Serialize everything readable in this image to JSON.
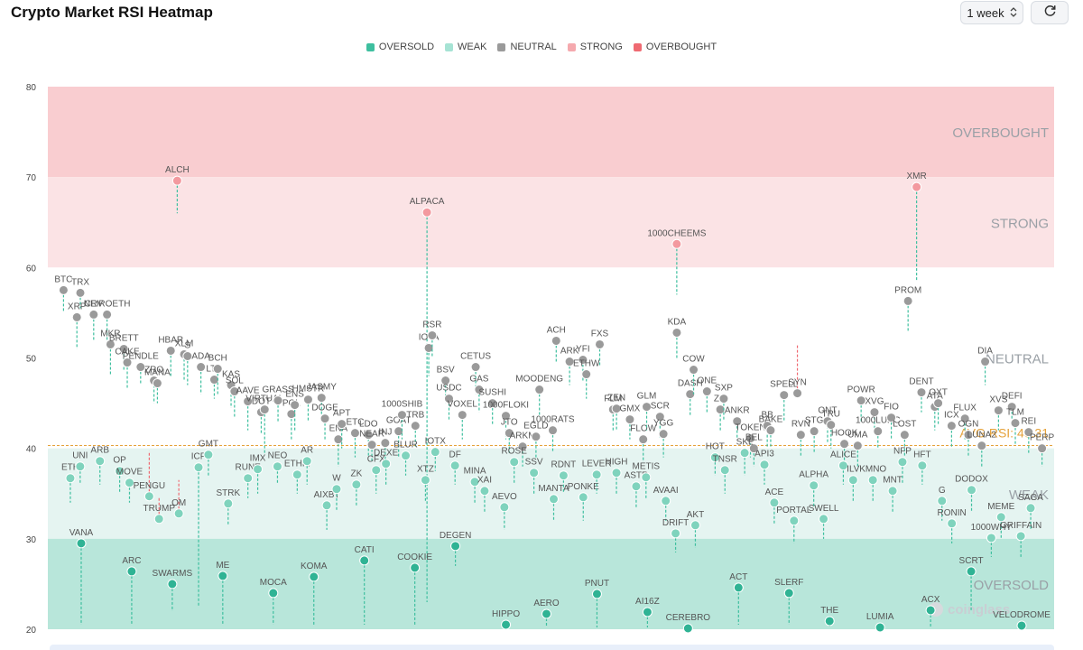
{
  "page": {
    "title": "Crypto Market RSI Heatmap"
  },
  "controls": {
    "period": "1 week"
  },
  "legend": [
    {
      "label": "OVERSOLD",
      "color": "#3ebf9f"
    },
    {
      "label": "WEAK",
      "color": "#a6e3d4"
    },
    {
      "label": "NEUTRAL",
      "color": "#9a9a9a"
    },
    {
      "label": "STRONG",
      "color": "#f5a9ae"
    },
    {
      "label": "OVERBOUGHT",
      "color": "#ef6a72"
    }
  ],
  "chart_data": {
    "type": "scatter",
    "title": "",
    "xlabel": "",
    "ylabel": "",
    "ylim": [
      20,
      80
    ],
    "yticks": [
      20,
      30,
      40,
      50,
      60,
      70,
      80
    ],
    "grid": false,
    "legend_position": "top-center",
    "zones": [
      {
        "label": "OVERBOUGHT",
        "from": 70,
        "to": 80,
        "color": "#f9cdd0"
      },
      {
        "label": "STRONG",
        "from": 60,
        "to": 70,
        "color": "#fbe3e5"
      },
      {
        "label": "NEUTRAL",
        "from": 40,
        "to": 60,
        "color": "#ffffff"
      },
      {
        "label": "WEAK",
        "from": 30,
        "to": 40,
        "color": "#e5f4f1"
      },
      {
        "label": "OVERSOLD",
        "from": 20,
        "to": 30,
        "color": "#b8e6da"
      }
    ],
    "average": {
      "label": "AVG RSI: 40.31",
      "value": 40.31
    },
    "watermark": "coinglass",
    "points": [
      {
        "label": "ALCH",
        "rsi": 69.6,
        "prev": 66.0
      },
      {
        "label": "ALPACA",
        "rsi": 66.1,
        "prev": 23.0
      },
      {
        "label": "1000CHEEMS",
        "rsi": 62.6,
        "prev": 57.0
      },
      {
        "label": "XMR",
        "rsi": 68.9,
        "prev": 58.5
      },
      {
        "label": "BTC",
        "rsi": 57.5,
        "prev": 55.0
      },
      {
        "label": "XRP",
        "rsi": 54.5,
        "prev": 51.0
      },
      {
        "label": "TRX",
        "rsi": 57.2,
        "prev": 55.5
      },
      {
        "label": "CRV",
        "rsi": 54.8,
        "prev": 52.0
      },
      {
        "label": "NEIROETH",
        "rsi": 54.8,
        "prev": 51.5
      },
      {
        "label": "MKR",
        "rsi": 51.5,
        "prev": 48.0
      },
      {
        "label": "BRETT",
        "rsi": 51.0,
        "prev": 48.5
      },
      {
        "label": "CAKE",
        "rsi": 49.5,
        "prev": 46.5
      },
      {
        "label": "PENDLE",
        "rsi": 49.0,
        "prev": 47.0
      },
      {
        "label": "ZRO",
        "rsi": 47.5,
        "prev": 45.0
      },
      {
        "label": "MANA",
        "rsi": 47.2,
        "prev": 45.0
      },
      {
        "label": "HBAR",
        "rsi": 50.8,
        "prev": 48.0
      },
      {
        "label": "XLM",
        "rsi": 50.4,
        "prev": 47.5
      },
      {
        "label": "S",
        "rsi": 50.2,
        "prev": 47.0
      },
      {
        "label": "ADA",
        "rsi": 49.0,
        "prev": 46.0
      },
      {
        "label": "LTC",
        "rsi": 47.6,
        "prev": 45.5
      },
      {
        "label": "BCH",
        "rsi": 48.8,
        "prev": 46.0
      },
      {
        "label": "KAS",
        "rsi": 47.0,
        "prev": 44.5
      },
      {
        "label": "SOL",
        "rsi": 46.3,
        "prev": 43.5
      },
      {
        "label": "AAVE",
        "rsi": 45.2,
        "prev": 42.0
      },
      {
        "label": "DOT",
        "rsi": 44.0,
        "prev": 41.5
      },
      {
        "label": "VIRTUAL",
        "rsi": 44.3,
        "prev": 39.5
      },
      {
        "label": "GRASS",
        "rsi": 45.3,
        "prev": 43.0
      },
      {
        "label": "POL",
        "rsi": 43.8,
        "prev": 41.0
      },
      {
        "label": "ENS",
        "rsi": 44.8,
        "prev": 42.0
      },
      {
        "label": "HMSTR",
        "rsi": 45.4,
        "prev": 43.0
      },
      {
        "label": "JASMY",
        "rsi": 45.6,
        "prev": 43.5
      },
      {
        "label": "DOGE",
        "rsi": 43.3,
        "prev": 41.0
      },
      {
        "label": "ENA",
        "rsi": 41.0,
        "prev": 38.0
      },
      {
        "label": "APT",
        "rsi": 42.7,
        "prev": 40.0
      },
      {
        "label": "ETC",
        "rsi": 41.7,
        "prev": 39.0
      },
      {
        "label": "LDO",
        "rsi": 41.5,
        "prev": 39.0
      },
      {
        "label": "NEAR",
        "rsi": 40.4,
        "prev": 38.5
      },
      {
        "label": "INJ",
        "rsi": 40.6,
        "prev": 38.0
      },
      {
        "label": "GOAT",
        "rsi": 41.9,
        "prev": 39.0
      },
      {
        "label": "1000SHIB",
        "rsi": 43.7,
        "prev": 41.0
      },
      {
        "label": "TRB",
        "rsi": 42.5,
        "prev": 40.0
      },
      {
        "label": "IOTA",
        "rsi": 51.1,
        "prev": 48.0
      },
      {
        "label": "RSR",
        "rsi": 52.5,
        "prev": 50.0
      },
      {
        "label": "BSV",
        "rsi": 47.5,
        "prev": 45.0
      },
      {
        "label": "USDC",
        "rsi": 45.5,
        "prev": 43.0
      },
      {
        "label": "VOXEL",
        "rsi": 43.7,
        "prev": 41.0
      },
      {
        "label": "CETUS",
        "rsi": 49.0,
        "prev": 46.0
      },
      {
        "label": "GAS",
        "rsi": 46.5,
        "prev": 44.0
      },
      {
        "label": "SUSHI",
        "rsi": 45.0,
        "prev": 42.5
      },
      {
        "label": "1000FLOKI",
        "rsi": 43.6,
        "prev": 41.0
      },
      {
        "label": "JTO",
        "rsi": 41.7,
        "prev": 39.5
      },
      {
        "label": "ARKM",
        "rsi": 40.2,
        "prev": 38.0
      },
      {
        "label": "EGLD",
        "rsi": 41.3,
        "prev": 39.0
      },
      {
        "label": "MOODENG",
        "rsi": 46.5,
        "prev": 43.5
      },
      {
        "label": "1000RATS",
        "rsi": 42.0,
        "prev": 39.5
      },
      {
        "label": "ACH",
        "rsi": 51.9,
        "prev": 49.5
      },
      {
        "label": "ARK",
        "rsi": 49.6,
        "prev": 47.0
      },
      {
        "label": "YFI",
        "rsi": 49.8,
        "prev": 47.5
      },
      {
        "label": "ETHW",
        "rsi": 48.2,
        "prev": 45.5
      },
      {
        "label": "FXS",
        "rsi": 51.5,
        "prev": 49.0
      },
      {
        "label": "FLM",
        "rsi": 44.3,
        "prev": 42.0
      },
      {
        "label": "ZEN",
        "rsi": 44.4,
        "prev": 42.0
      },
      {
        "label": "GMX",
        "rsi": 43.2,
        "prev": 41.0
      },
      {
        "label": "FLOW",
        "rsi": 41.0,
        "prev": 38.5
      },
      {
        "label": "GLM",
        "rsi": 44.6,
        "prev": 42.0
      },
      {
        "label": "SCR",
        "rsi": 43.5,
        "prev": 41.0
      },
      {
        "label": "YGG",
        "rsi": 41.6,
        "prev": 39.0
      },
      {
        "label": "KDA",
        "rsi": 52.8,
        "prev": 50.0
      },
      {
        "label": "DASH",
        "rsi": 46.0,
        "prev": 43.5
      },
      {
        "label": "COW",
        "rsi": 48.7,
        "prev": 46.0
      },
      {
        "label": "ONE",
        "rsi": 46.3,
        "prev": 44.0
      },
      {
        "label": "ZIL",
        "rsi": 44.3,
        "prev": 42.0
      },
      {
        "label": "SXP",
        "rsi": 45.5,
        "prev": 43.0
      },
      {
        "label": "ANKR",
        "rsi": 43.0,
        "prev": 41.0
      },
      {
        "label": "TOKEN",
        "rsi": 41.1,
        "prev": 39.0
      },
      {
        "label": "BEL",
        "rsi": 40.0,
        "prev": 38.0
      },
      {
        "label": "BB",
        "rsi": 42.5,
        "prev": 40.0
      },
      {
        "label": "BAKE",
        "rsi": 42.0,
        "prev": 40.0
      },
      {
        "label": "SPELL",
        "rsi": 45.9,
        "prev": 43.0
      },
      {
        "label": "SYN",
        "rsi": 46.1,
        "prev": 51.4
      },
      {
        "label": "RVN",
        "rsi": 41.5,
        "prev": 39.0
      },
      {
        "label": "STG",
        "rsi": 41.9,
        "prev": 39.5
      },
      {
        "label": "ONT",
        "rsi": 43.0,
        "prev": 40.5
      },
      {
        "label": "TRU",
        "rsi": 42.6,
        "prev": 40.0
      },
      {
        "label": "HOOK",
        "rsi": 40.5,
        "prev": 38.0
      },
      {
        "label": "UMA",
        "rsi": 40.3,
        "prev": 38.0
      },
      {
        "label": "POWR",
        "rsi": 45.3,
        "prev": 43.0
      },
      {
        "label": "XVG",
        "rsi": 44.0,
        "prev": 41.5
      },
      {
        "label": "1000LUNC",
        "rsi": 41.9,
        "prev": 40.0
      },
      {
        "label": "FIO",
        "rsi": 43.4,
        "prev": 41.0
      },
      {
        "label": "LOST",
        "rsi": 41.5,
        "prev": 39.0
      },
      {
        "label": "PROM",
        "rsi": 56.3,
        "prev": 53.0
      },
      {
        "label": "DENT",
        "rsi": 46.2,
        "prev": 44.0
      },
      {
        "label": "ATA",
        "rsi": 44.6,
        "prev": 42.0
      },
      {
        "label": "OXT",
        "rsi": 45.0,
        "prev": 42.5
      },
      {
        "label": "ICX",
        "rsi": 42.5,
        "prev": 40.0
      },
      {
        "label": "FLUX",
        "rsi": 43.3,
        "prev": 41.0
      },
      {
        "label": "OGN",
        "rsi": 41.5,
        "prev": 39.0
      },
      {
        "label": "LUNA2",
        "rsi": 40.3,
        "prev": 38.0
      },
      {
        "label": "DIA",
        "rsi": 49.6,
        "prev": 47.0
      },
      {
        "label": "XVS",
        "rsi": 44.2,
        "prev": 42.0
      },
      {
        "label": "DEFI",
        "rsi": 44.6,
        "prev": 42.5
      },
      {
        "label": "TLM",
        "rsi": 42.8,
        "prev": 40.5
      },
      {
        "label": "REI",
        "rsi": 41.8,
        "prev": 39.5
      },
      {
        "label": "ETH",
        "rsi": 36.7,
        "prev": 34.0
      },
      {
        "label": "UNI",
        "rsi": 38.0,
        "prev": 36.0
      },
      {
        "label": "ARB",
        "rsi": 38.6,
        "prev": 36.0
      },
      {
        "label": "OP",
        "rsi": 37.5,
        "prev": 35.0
      },
      {
        "label": "MOVE",
        "rsi": 36.2,
        "prev": 34.0
      },
      {
        "label": "PENGU",
        "rsi": 34.7,
        "prev": 39.7
      },
      {
        "label": "TRUMP",
        "rsi": 32.2,
        "prev": 34.5
      },
      {
        "label": "OM",
        "rsi": 32.8,
        "prev": 36.5
      },
      {
        "label": "ICP",
        "rsi": 37.9,
        "prev": 22.5
      },
      {
        "label": "GMT",
        "rsi": 39.3,
        "prev": 37.0
      },
      {
        "label": "STRK",
        "rsi": 33.9,
        "prev": 31.5
      },
      {
        "label": "RUNE",
        "rsi": 36.7,
        "prev": 34.5
      },
      {
        "label": "IMX",
        "rsi": 37.7,
        "prev": 35.0
      },
      {
        "label": "NEO",
        "rsi": 38.0,
        "prev": 36.0
      },
      {
        "label": "ETHFI",
        "rsi": 37.1,
        "prev": 35.0
      },
      {
        "label": "AR",
        "rsi": 38.6,
        "prev": 36.0
      },
      {
        "label": "AIXBT",
        "rsi": 33.7,
        "prev": 31.0
      },
      {
        "label": "W",
        "rsi": 35.5,
        "prev": 33.0
      },
      {
        "label": "ZK",
        "rsi": 36.0,
        "prev": 33.5
      },
      {
        "label": "CFX",
        "rsi": 37.6,
        "prev": 35.0
      },
      {
        "label": "DEXE",
        "rsi": 38.3,
        "prev": 36.0
      },
      {
        "label": "BLUR",
        "rsi": 39.2,
        "prev": 37.0
      },
      {
        "label": "XTZ",
        "rsi": 36.5,
        "prev": 34.0
      },
      {
        "label": "IOTX",
        "rsi": 39.6,
        "prev": 37.5
      },
      {
        "label": "DF",
        "rsi": 38.1,
        "prev": 36.0
      },
      {
        "label": "MINA",
        "rsi": 36.3,
        "prev": 34.0
      },
      {
        "label": "XAI",
        "rsi": 35.3,
        "prev": 33.0
      },
      {
        "label": "AEVO",
        "rsi": 33.5,
        "prev": 31.0
      },
      {
        "label": "ROSE",
        "rsi": 38.5,
        "prev": 36.0
      },
      {
        "label": "SSV",
        "rsi": 37.3,
        "prev": 35.0
      },
      {
        "label": "MANTA",
        "rsi": 34.4,
        "prev": 32.0
      },
      {
        "label": "RDNT",
        "rsi": 37.0,
        "prev": 35.0
      },
      {
        "label": "PONKE",
        "rsi": 34.6,
        "prev": 32.0
      },
      {
        "label": "PERP",
        "rsi": 40.0,
        "prev": 38.0
      },
      {
        "label": "LEVER",
        "rsi": 37.1,
        "prev": 35.0
      },
      {
        "label": "HIGH",
        "rsi": 37.3,
        "prev": 35.0
      },
      {
        "label": "ASTR",
        "rsi": 35.8,
        "prev": 33.5
      },
      {
        "label": "METIS",
        "rsi": 36.8,
        "prev": 34.5
      },
      {
        "label": "AVAAI",
        "rsi": 34.2,
        "prev": 32.0
      },
      {
        "label": "DRIFT",
        "rsi": 30.6,
        "prev": 28.5
      },
      {
        "label": "AKT",
        "rsi": 31.5,
        "prev": 29.0
      },
      {
        "label": "HOT",
        "rsi": 39.0,
        "prev": 37.0
      },
      {
        "label": "TNSR",
        "rsi": 37.6,
        "prev": 35.0
      },
      {
        "label": "SKL",
        "rsi": 39.5,
        "prev": 37.0
      },
      {
        "label": "API3",
        "rsi": 38.2,
        "prev": 36.0
      },
      {
        "label": "ACE",
        "rsi": 34.0,
        "prev": 31.5
      },
      {
        "label": "PORTAL",
        "rsi": 32.0,
        "prev": 29.5
      },
      {
        "label": "ALPHA",
        "rsi": 35.9,
        "prev": 33.5
      },
      {
        "label": "SWELL",
        "rsi": 32.2,
        "prev": 30.0
      },
      {
        "label": "ALICE",
        "rsi": 38.1,
        "prev": 36.0
      },
      {
        "label": "ILV",
        "rsi": 36.5,
        "prev": 34.0
      },
      {
        "label": "KMNO",
        "rsi": 36.5,
        "prev": 34.0
      },
      {
        "label": "MNT",
        "rsi": 35.3,
        "prev": 33.0
      },
      {
        "label": "NFP",
        "rsi": 38.5,
        "prev": 36.0
      },
      {
        "label": "HFT",
        "rsi": 38.1,
        "prev": 36.0
      },
      {
        "label": "G",
        "rsi": 34.2,
        "prev": 32.0
      },
      {
        "label": "RONIN",
        "rsi": 31.7,
        "prev": 29.5
      },
      {
        "label": "DODOX",
        "rsi": 35.4,
        "prev": 33.0
      },
      {
        "label": "1000WHY",
        "rsi": 30.1,
        "prev": 28.0
      },
      {
        "label": "MEME",
        "rsi": 32.4,
        "prev": 30.0
      },
      {
        "label": "GRIFFAIN",
        "rsi": 30.3,
        "prev": 28.0
      },
      {
        "label": "SAGA",
        "rsi": 33.4,
        "prev": 31.0
      },
      {
        "label": "VANA",
        "rsi": 29.5,
        "prev": 20.5
      },
      {
        "label": "ARC",
        "rsi": 26.4,
        "prev": 20.5
      },
      {
        "label": "SWARMS",
        "rsi": 25.0,
        "prev": 22.0
      },
      {
        "label": "ME",
        "rsi": 25.9,
        "prev": 20.5
      },
      {
        "label": "MOCA",
        "rsi": 24.0,
        "prev": 20.5
      },
      {
        "label": "KOMA",
        "rsi": 25.8,
        "prev": 20.5
      },
      {
        "label": "CATI",
        "rsi": 27.6,
        "prev": 20.5
      },
      {
        "label": "COOKIE",
        "rsi": 26.8,
        "prev": 20.5
      },
      {
        "label": "DEGEN",
        "rsi": 29.2,
        "prev": 27.0
      },
      {
        "label": "HIPPO",
        "rsi": 20.5,
        "prev": 20.2
      },
      {
        "label": "AERO",
        "rsi": 21.7,
        "prev": 20.2
      },
      {
        "label": "PNUT",
        "rsi": 23.9,
        "prev": 20.2
      },
      {
        "label": "AI16Z",
        "rsi": 21.9,
        "prev": 20.2
      },
      {
        "label": "CEREBRO",
        "rsi": 20.1,
        "prev": 20.0
      },
      {
        "label": "ACT",
        "rsi": 24.6,
        "prev": 20.5
      },
      {
        "label": "SLERF",
        "rsi": 24.0,
        "prev": 20.5
      },
      {
        "label": "THE",
        "rsi": 20.9,
        "prev": 20.3
      },
      {
        "label": "LUMIA",
        "rsi": 20.2,
        "prev": 20.0
      },
      {
        "label": "ACX",
        "rsi": 22.1,
        "prev": 20.3
      },
      {
        "label": "SCRT",
        "rsi": 26.4,
        "prev": 22.0
      },
      {
        "label": "VELODROME",
        "rsi": 20.4,
        "prev": 20.1
      }
    ]
  }
}
